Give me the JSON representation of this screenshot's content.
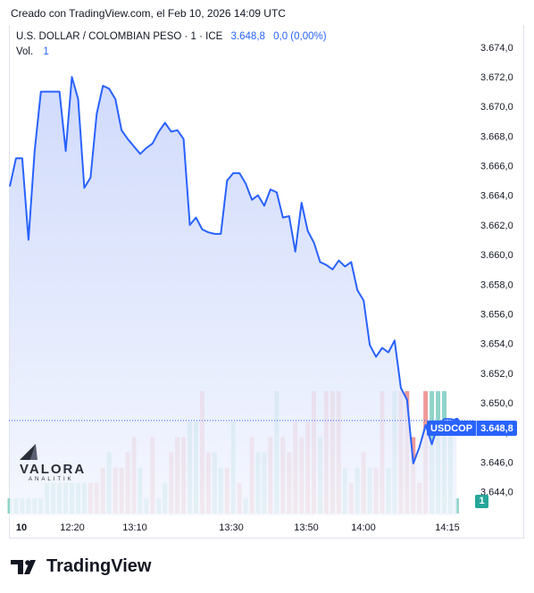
{
  "header": {
    "created_text": "Creado con TradingView.com, el Feb 10, 2026 14:09 UTC"
  },
  "legend": {
    "symbol": "U.S. DOLLAR / COLOMBIAN PESO · 1 · ICE",
    "last": "3.648,8",
    "change": "0,0 (0,00%)",
    "volume_label": "Vol.",
    "volume_value": "1"
  },
  "watermark": {
    "brand": "VALORA",
    "sub": "ANALITIK"
  },
  "price_tag": {
    "ticker": "USDCOP",
    "price": "3.648,8"
  },
  "volume_badge": "1",
  "footer": {
    "brand": "TradingView"
  },
  "colors": {
    "line": "#2962ff",
    "area_top": "#c8d4fb",
    "area_bottom": "#f3f6fe",
    "vol_up": "#8fd3c9",
    "vol_down": "#ef9a9a"
  },
  "chart_data": {
    "type": "area",
    "y_ticks": [
      "3.674,0",
      "3.672,0",
      "3.670,0",
      "3.668,0",
      "3.666,0",
      "3.664,0",
      "3.662,0",
      "3.660,0",
      "3.658,0",
      "3.656,0",
      "3.654,0",
      "3.652,0",
      "3.650,0",
      "3.648,0",
      "3.646,0",
      "3.644,0"
    ],
    "y_tick_values": [
      3674,
      3672,
      3670,
      3668,
      3666,
      3664,
      3662,
      3660,
      3658,
      3656,
      3654,
      3652,
      3650,
      3648,
      3646,
      3644
    ],
    "x_ticks": [
      "10",
      "12:20",
      "13:10",
      "13:30",
      "13:50",
      "14:00",
      "14:15"
    ],
    "ylim": [
      3642.4,
      3675.5
    ],
    "price": [
      3664.6,
      3666.5,
      3666.5,
      3661.0,
      3667.0,
      3671.0,
      3671.0,
      3671.0,
      3671.0,
      3667.0,
      3672.0,
      3670.5,
      3664.5,
      3665.2,
      3669.5,
      3671.4,
      3671.2,
      3670.5,
      3668.4,
      3667.8,
      3667.3,
      3666.8,
      3667.2,
      3667.5,
      3668.3,
      3668.9,
      3668.3,
      3668.4,
      3667.8,
      3662.0,
      3662.5,
      3661.7,
      3661.5,
      3661.4,
      3661.4,
      3665.0,
      3665.5,
      3665.5,
      3664.8,
      3663.7,
      3664.0,
      3663.3,
      3664.4,
      3664.2,
      3662.5,
      3662.6,
      3660.2,
      3663.5,
      3661.6,
      3660.8,
      3659.5,
      3659.3,
      3659.0,
      3659.6,
      3659.2,
      3659.5,
      3657.6,
      3656.9,
      3653.9,
      3653.1,
      3653.7,
      3653.4,
      3654.2,
      3651.0,
      3650.2,
      3645.9,
      3647.0,
      3648.5,
      3647.2,
      3648.5,
      3648.9,
      3648.9,
      3648.8
    ],
    "volume": [
      1,
      1,
      1,
      1,
      1,
      1,
      2,
      2,
      2,
      2,
      2,
      2,
      2,
      2,
      2,
      3,
      4,
      3,
      3,
      4,
      5,
      3,
      1,
      5,
      1,
      2,
      4,
      5,
      5,
      6,
      6,
      8,
      4,
      4,
      3,
      3,
      6,
      2,
      1,
      5,
      4,
      4,
      5,
      8,
      5,
      4,
      6,
      5,
      6,
      8,
      5,
      8,
      8,
      8,
      3,
      2,
      3,
      4,
      3,
      3,
      8,
      3,
      8,
      8,
      8,
      5,
      2,
      8,
      8,
      8,
      8,
      6,
      1
    ],
    "volume_direction": [
      "up",
      "up",
      "up",
      "up",
      "up",
      "up",
      "up",
      "up",
      "up",
      "up",
      "up",
      "up",
      "up",
      "down",
      "down",
      "down",
      "up",
      "down",
      "down",
      "down",
      "down",
      "up",
      "up",
      "down",
      "up",
      "up",
      "down",
      "down",
      "down",
      "up",
      "up",
      "down",
      "down",
      "up",
      "up",
      "down",
      "up",
      "down",
      "up",
      "down",
      "up",
      "up",
      "down",
      "up",
      "down",
      "down",
      "down",
      "down",
      "down",
      "down",
      "up",
      "down",
      "down",
      "down",
      "up",
      "down",
      "up",
      "down",
      "up",
      "down",
      "down",
      "up",
      "up",
      "down",
      "down",
      "down",
      "down",
      "down",
      "up",
      "up",
      "up",
      "up",
      "up"
    ]
  }
}
